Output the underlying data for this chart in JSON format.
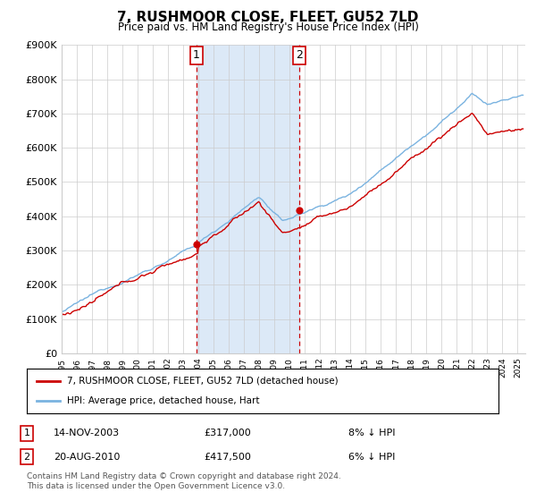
{
  "title": "7, RUSHMOOR CLOSE, FLEET, GU52 7LD",
  "subtitle": "Price paid vs. HM Land Registry's House Price Index (HPI)",
  "ylabel_ticks": [
    "£0",
    "£100K",
    "£200K",
    "£300K",
    "£400K",
    "£500K",
    "£600K",
    "£700K",
    "£800K",
    "£900K"
  ],
  "ylim": [
    0,
    900000
  ],
  "xlim_start": 1995.0,
  "xlim_end": 2025.5,
  "transaction1_date": 2003.87,
  "transaction1_price": 317000,
  "transaction1_label": "1",
  "transaction2_date": 2010.63,
  "transaction2_price": 417500,
  "transaction2_label": "2",
  "shade_color": "#dce9f7",
  "hpi_line_color": "#7ab3e0",
  "price_line_color": "#cc0000",
  "marker_color": "#cc0000",
  "vline_color": "#cc0000",
  "grid_color": "#cccccc",
  "background_color": "#ffffff",
  "legend_label_price": "7, RUSHMOOR CLOSE, FLEET, GU52 7LD (detached house)",
  "legend_label_hpi": "HPI: Average price, detached house, Hart",
  "footnote_box1_label": "1",
  "footnote_box2_label": "2",
  "footnote_date1": "14-NOV-2003",
  "footnote_price1": "£317,000",
  "footnote_hpi1": "8% ↓ HPI",
  "footnote_date2": "20-AUG-2010",
  "footnote_price2": "£417,500",
  "footnote_hpi2": "6% ↓ HPI",
  "copyright_text": "Contains HM Land Registry data © Crown copyright and database right 2024.\nThis data is licensed under the Open Government Licence v3.0."
}
